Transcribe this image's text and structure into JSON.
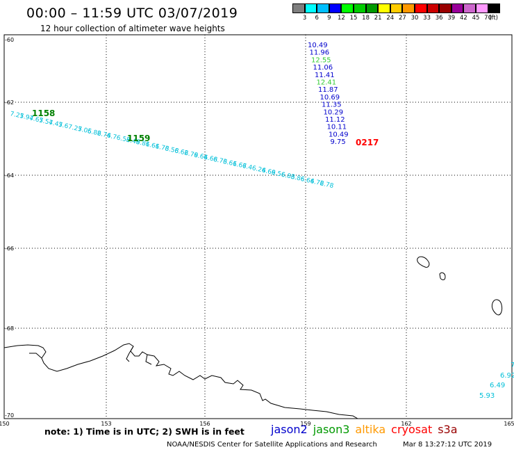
{
  "header": {
    "title": "00:00 – 11:59 UTC 03/07/2019",
    "subtitle": "12 hour collection of altimeter wave heights"
  },
  "color_scale": {
    "labels": [
      "3",
      "6",
      "9",
      "12",
      "15",
      "18",
      "21",
      "24",
      "27",
      "30",
      "33",
      "36",
      "39",
      "42",
      "45",
      "70",
      "(ft)"
    ],
    "colors": [
      "#7f7f7f",
      "#00ffff",
      "#00bfff",
      "#0000ff",
      "#00ff00",
      "#00cc00",
      "#009900",
      "#ffff00",
      "#ffcc00",
      "#ff9900",
      "#ff0000",
      "#cc0000",
      "#990000",
      "#990099",
      "#cc66cc",
      "#ff99ff",
      "#000000"
    ]
  },
  "map": {
    "lat_ticks": [
      "-60",
      "-62",
      "-64",
      "-66",
      "-68",
      "-70"
    ],
    "lon_ticks": [
      "150",
      "153",
      "156",
      "159",
      "162",
      "165"
    ],
    "time_labels": [
      {
        "text": "1158",
        "color": "#008000"
      },
      {
        "text": "1159",
        "color": "#008000"
      },
      {
        "text": "0217",
        "color": "#ff0000"
      }
    ],
    "track_cyan_labels": [
      "7.25",
      "7.94",
      "7.65",
      "7.54",
      "7.45",
      "7.6",
      "7.25",
      "7.05",
      "6.82",
      "6.74",
      "6.7",
      "6.53",
      "6.49",
      "6.81",
      "6.61",
      "6.73",
      "6.58",
      "6.62",
      "6.79",
      "6.64",
      "6.68",
      "6.73",
      "6.61",
      "6.67",
      "6.4",
      "6.24",
      "6.69",
      "6.56",
      "6.83",
      "6.86",
      "6.64",
      "6.72",
      "6.78"
    ],
    "track_blue_labels": [
      {
        "text": "10.49",
        "color": "#0000cc"
      },
      {
        "text": "11.96",
        "color": "#0000cc"
      },
      {
        "text": "12.55",
        "color": "#33cc33"
      },
      {
        "text": "11.06",
        "color": "#0000cc"
      },
      {
        "text": "11.41",
        "color": "#0000cc"
      },
      {
        "text": "12.41",
        "color": "#33cc33"
      },
      {
        "text": "11.87",
        "color": "#0000cc"
      },
      {
        "text": "10.69",
        "color": "#0000cc"
      },
      {
        "text": "11.35",
        "color": "#0000cc"
      },
      {
        "text": "10.29",
        "color": "#0000cc"
      },
      {
        "text": "11.12",
        "color": "#0000cc"
      },
      {
        "text": "10.11",
        "color": "#0000cc"
      },
      {
        "text": "10.49",
        "color": "#0000cc"
      },
      {
        "text": "9.75",
        "color": "#0000cc"
      }
    ],
    "corner_labels": [
      "7",
      "6.92",
      "6.49",
      "5.93"
    ]
  },
  "note": "note: 1) Time is in UTC; 2) SWH is in feet",
  "legend": [
    {
      "name": "jason2",
      "color": "#0000cc"
    },
    {
      "name": "jason3",
      "color": "#009900"
    },
    {
      "name": "altika",
      "color": "#ff9900"
    },
    {
      "name": "cryosat",
      "color": "#ff0000"
    },
    {
      "name": "s3a",
      "color": "#990000"
    }
  ],
  "footer": {
    "credit": "NOAA/NESDIS Center for Satellite Applications and Research",
    "timestamp": "Mar  8 13:27:12 UTC 2019"
  }
}
